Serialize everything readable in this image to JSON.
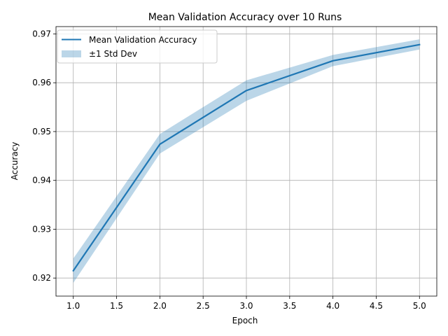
{
  "chart_data": {
    "type": "line",
    "title": "Mean Validation Accuracy over 10 Runs",
    "xlabel": "Epoch",
    "ylabel": "Accuracy",
    "xlim": [
      0.8,
      5.2
    ],
    "ylim": [
      0.9163,
      0.9715
    ],
    "x": [
      1.0,
      2.0,
      3.0,
      4.0,
      5.0
    ],
    "series": [
      {
        "name": "Mean Validation Accuracy",
        "values": [
          0.9215,
          0.9474,
          0.9584,
          0.9645,
          0.9678
        ],
        "color": "#1f77b4"
      }
    ],
    "band": {
      "name": "±1 Std Dev",
      "lower": [
        0.919,
        0.9455,
        0.9563,
        0.9634,
        0.9668
      ],
      "upper": [
        0.924,
        0.9495,
        0.9605,
        0.9657,
        0.9689
      ],
      "color": "#1f77b4",
      "opacity": 0.3
    },
    "xticks": [
      1.0,
      1.5,
      2.0,
      2.5,
      3.0,
      3.5,
      4.0,
      4.5,
      5.0
    ],
    "xtick_labels": [
      "1.0",
      "1.5",
      "2.0",
      "2.5",
      "3.0",
      "3.5",
      "4.0",
      "4.5",
      "5.0"
    ],
    "yticks": [
      0.92,
      0.93,
      0.94,
      0.95,
      0.96,
      0.97
    ],
    "ytick_labels": [
      "0.92",
      "0.93",
      "0.94",
      "0.95",
      "0.96",
      "0.97"
    ],
    "grid": true,
    "legend": {
      "position": "top-left",
      "entries": [
        "Mean Validation Accuracy",
        "±1 Std Dev"
      ]
    }
  }
}
